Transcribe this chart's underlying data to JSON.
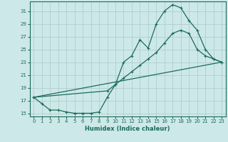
{
  "xlabel": "Humidex (Indice chaleur)",
  "ylabel": "",
  "bg_color": "#cde8e8",
  "grid_color": "#b0cece",
  "line_color": "#1a6b5a",
  "xlim": [
    -0.5,
    23.5
  ],
  "ylim": [
    14.5,
    32.5
  ],
  "xticks": [
    0,
    1,
    2,
    3,
    4,
    5,
    6,
    7,
    8,
    9,
    10,
    11,
    12,
    13,
    14,
    15,
    16,
    17,
    18,
    19,
    20,
    21,
    22,
    23
  ],
  "yticks": [
    15,
    17,
    19,
    21,
    23,
    25,
    27,
    29,
    31
  ],
  "line1_x": [
    0,
    1,
    2,
    3,
    4,
    5,
    6,
    7,
    8,
    9,
    10,
    11,
    12,
    13,
    14,
    15,
    16,
    17,
    18,
    19,
    20,
    21,
    22,
    23
  ],
  "line1_y": [
    17.5,
    16.5,
    15.5,
    15.5,
    15.2,
    15.0,
    15.0,
    15.0,
    15.2,
    17.5,
    19.5,
    23.0,
    24.0,
    26.5,
    25.2,
    29.0,
    31.0,
    32.0,
    31.5,
    29.5,
    28.0,
    25.0,
    23.5,
    23.0
  ],
  "line2_x": [
    0,
    23
  ],
  "line2_y": [
    17.5,
    23.0
  ],
  "line3_x": [
    0,
    9,
    10,
    11,
    12,
    13,
    14,
    15,
    16,
    17,
    18,
    19,
    20,
    21,
    22,
    23
  ],
  "line3_y": [
    17.5,
    18.5,
    19.5,
    20.5,
    21.5,
    22.5,
    23.5,
    24.5,
    26.0,
    27.5,
    28.0,
    27.5,
    25.0,
    24.0,
    23.5,
    23.0
  ]
}
